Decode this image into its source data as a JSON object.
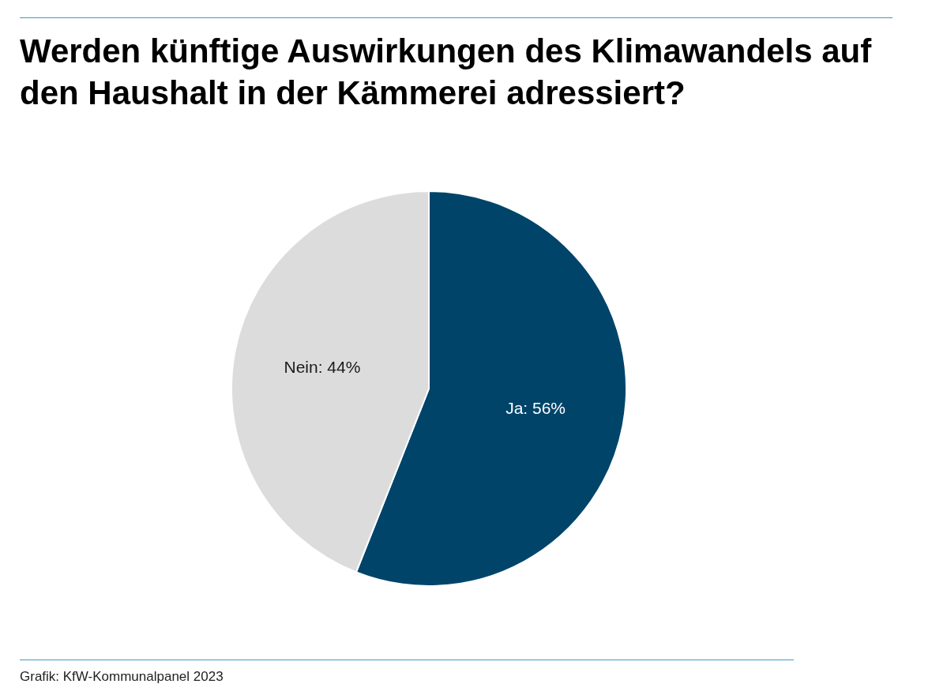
{
  "chart_data": {
    "type": "pie",
    "title": "Werden künftige Auswirkungen des Klimawandels auf den Haushalt in der Kämmerei adressiert?",
    "categories": [
      "Ja",
      "Nein"
    ],
    "values": [
      56,
      44
    ],
    "colors": [
      "#00446a",
      "#dcdcdc"
    ],
    "value_labels": [
      "56%",
      "44%"
    ],
    "annotations": [
      "Grafik: KfW-Kommunalpanel 2023"
    ]
  }
}
